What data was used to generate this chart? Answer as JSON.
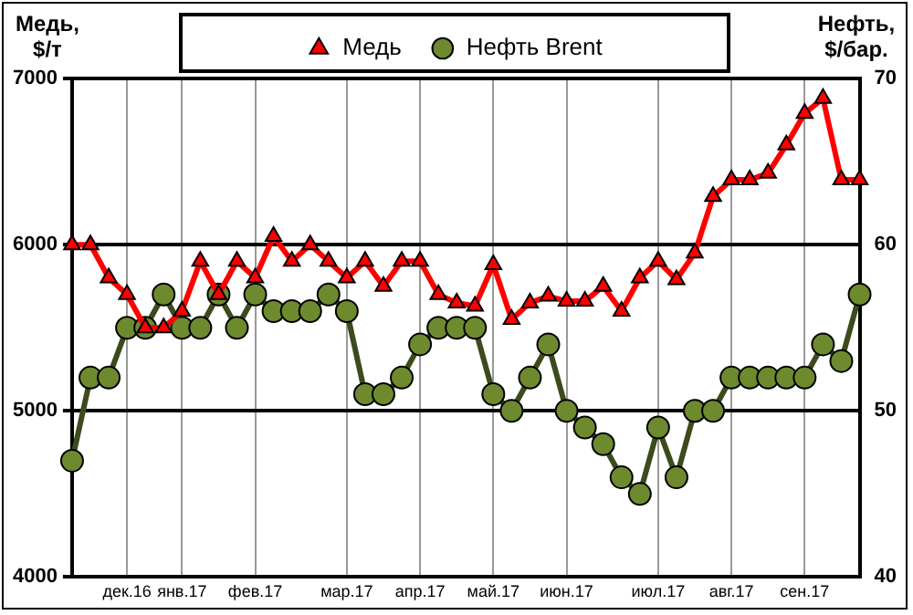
{
  "chart_data": {
    "type": "line",
    "ylabel": "Медь, $/т",
    "y2label": "Нефть, $/бар.",
    "categories": [
      null,
      null,
      null,
      "дек.16",
      null,
      null,
      "янв.17",
      null,
      null,
      null,
      "фев.17",
      null,
      null,
      null,
      null,
      "мар.17",
      null,
      null,
      null,
      "апр.17",
      null,
      null,
      null,
      "май.17",
      null,
      null,
      null,
      "июн.17",
      null,
      null,
      null,
      null,
      "июл.17",
      null,
      null,
      null,
      "авг.17",
      null,
      null,
      null,
      "сен.17",
      null,
      null,
      null
    ],
    "series": [
      {
        "name": "Медь",
        "color": "#ff0000",
        "marker": "triangle",
        "values": [
          6000,
          6000,
          5800,
          5700,
          5500,
          5500,
          5600,
          5900,
          5700,
          5900,
          5800,
          6050,
          5900,
          6000,
          5900,
          5800,
          5900,
          5750,
          5900,
          5900,
          5700,
          5650,
          5630,
          5880,
          5550,
          5650,
          5690,
          5660,
          5660,
          5750,
          5600,
          5800,
          5900,
          5790,
          5950,
          6290,
          6390,
          6390,
          6430,
          6600,
          6790,
          6880,
          6390,
          6390
        ]
      },
      {
        "name": "Нефть Brent",
        "color": "#3d4a1c",
        "marker": "circle",
        "axis": "y2",
        "values": [
          47,
          52,
          52,
          55,
          55,
          57,
          55,
          55,
          57,
          55,
          57,
          56,
          56,
          56,
          57,
          56,
          51,
          51,
          52,
          54,
          55,
          55,
          55,
          51,
          50,
          52,
          54,
          50,
          49,
          48,
          46,
          45,
          49,
          46,
          50,
          50,
          52,
          52,
          52,
          52,
          52,
          54,
          53,
          57
        ]
      }
    ],
    "ylim": [
      4000,
      7000
    ],
    "yticks": [
      4000,
      5000,
      6000,
      7000
    ],
    "y2lim": [
      40,
      70
    ],
    "y2ticks": [
      40,
      50,
      60,
      70
    ],
    "grid": true,
    "legend": "top"
  }
}
